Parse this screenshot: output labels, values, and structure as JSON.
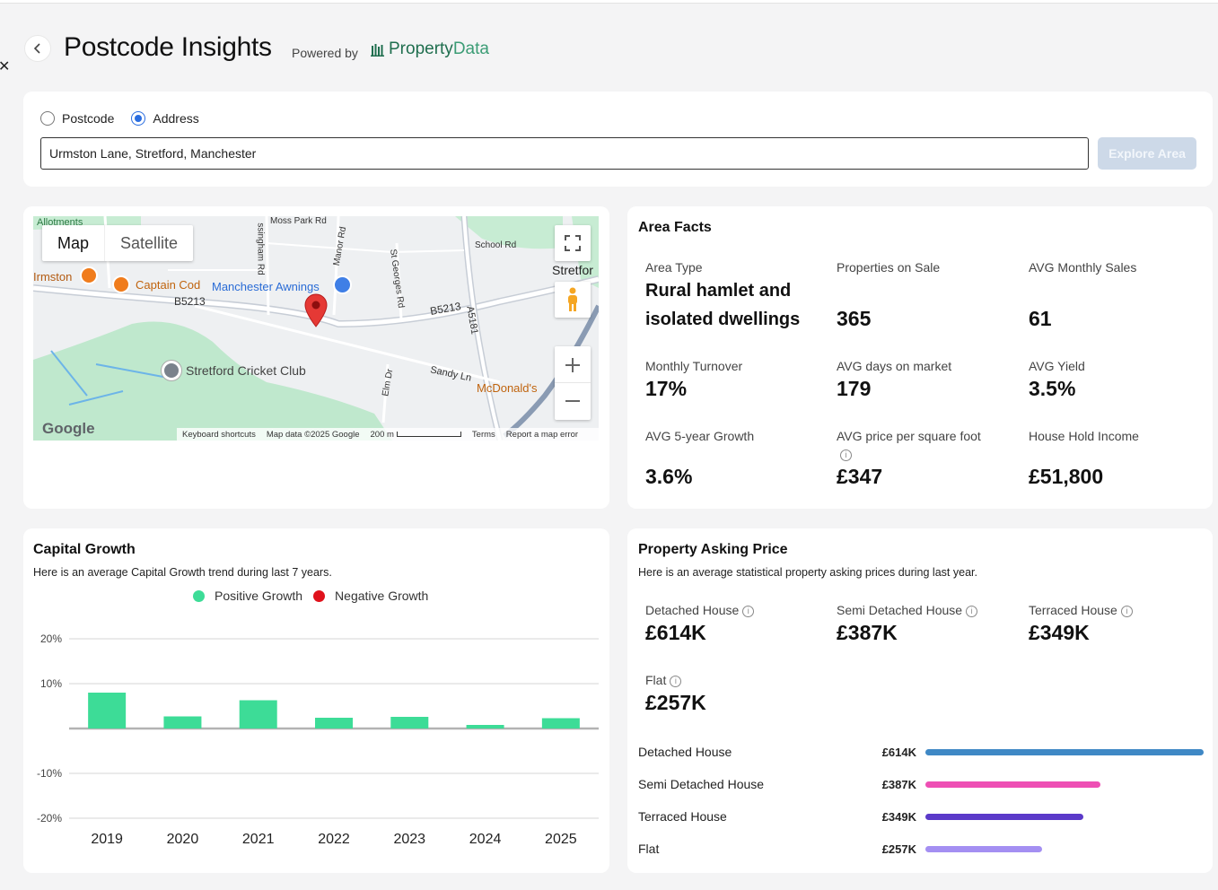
{
  "header": {
    "title": "Postcode Insights",
    "powered_by": "Powered by",
    "brand_part1": "Property",
    "brand_part2": "Data"
  },
  "search": {
    "radio_postcode": "Postcode",
    "radio_address": "Address",
    "selected": "Address",
    "input_value": "Urmston Lane, Stretford, Manchester",
    "button_label": "Explore Area"
  },
  "map": {
    "type_map": "Map",
    "type_satellite": "Satellite",
    "labels": {
      "allotments": "Allotments",
      "moss_park": "Moss Park Rd",
      "school_rd": "School Rd",
      "stretford": "Stretfor",
      "urmston": "Irmston",
      "captain_cod": "Captain Cod",
      "manchester_awnings": "Manchester Awnings",
      "b5213_left": "B5213",
      "b5213_right": "B5213",
      "a5181": "A5181",
      "stretford_cricket": "Stretford Cricket Club",
      "sandy_ln": "Sandy Ln",
      "mcdonalds": "McDonald's",
      "elm_dr": "Elm Dr",
      "st_georges": "St Georges Rd",
      "manor_rd": "Manor Rd",
      "cunningham": "ssingham Rd"
    },
    "google": "Google",
    "footer": {
      "shortcuts": "Keyboard shortcuts",
      "mapdata": "Map data ©2025 Google",
      "scale": "200 m",
      "terms": "Terms",
      "report": "Report a map error"
    }
  },
  "area_facts": {
    "title": "Area Facts",
    "facts": [
      {
        "label": "Area Type",
        "value": "Rural hamlet and isolated dwellings"
      },
      {
        "label": "Properties on Sale",
        "value": "365"
      },
      {
        "label": "AVG Monthly Sales",
        "value": "61"
      },
      {
        "label": "Monthly Turnover",
        "value": "17%"
      },
      {
        "label": "AVG days on market",
        "value": "179"
      },
      {
        "label": "AVG Yield",
        "value": "3.5%"
      },
      {
        "label": "AVG 5-year Growth",
        "value": "3.6%"
      },
      {
        "label": "AVG price per square foot",
        "value": "£347"
      },
      {
        "label": "House Hold Income",
        "value": "£51,800"
      }
    ]
  },
  "capital_growth": {
    "title": "Capital Growth",
    "subtitle": "Here is an average Capital Growth trend during last 7 years.",
    "legend_positive": "Positive Growth",
    "legend_negative": "Negative Growth",
    "positive_color": "#3ddc97",
    "negative_color": "#e0121c"
  },
  "chart_data": {
    "type": "bar",
    "categories": [
      "2019",
      "2020",
      "2021",
      "2022",
      "2023",
      "2024",
      "2025"
    ],
    "values": [
      8,
      2.7,
      6.3,
      2.4,
      2.6,
      0.8,
      2.3
    ],
    "ylim": [
      -20,
      20
    ],
    "yticks": [
      20,
      10,
      -10,
      -20
    ],
    "ytick_labels": [
      "20%",
      "10%",
      "-10%",
      "-20%"
    ],
    "grid": true,
    "xlabel": "",
    "ylabel": ""
  },
  "asking_price": {
    "title": "Property Asking Price",
    "subtitle": "Here is an average statistical property asking prices during last year.",
    "items": [
      {
        "label": "Detached House",
        "value": "£614K"
      },
      {
        "label": "Semi Detached House",
        "value": "£387K"
      },
      {
        "label": "Terraced House",
        "value": "£349K"
      },
      {
        "label": "Flat",
        "value": "£257K"
      }
    ],
    "bars": [
      {
        "label": "Detached House",
        "value_label": "£614K",
        "value": 614,
        "color": "#3f88c5"
      },
      {
        "label": "Semi Detached House",
        "value_label": "£387K",
        "value": 387,
        "color": "#ee4fb4"
      },
      {
        "label": "Terraced House",
        "value_label": "£349K",
        "value": 349,
        "color": "#5b3ac9"
      },
      {
        "label": "Flat",
        "value_label": "£257K",
        "value": 257,
        "color": "#a48ff2"
      }
    ]
  }
}
